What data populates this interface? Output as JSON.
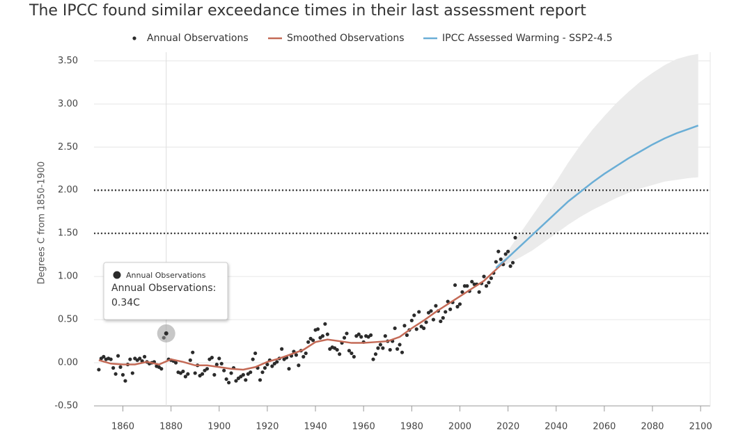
{
  "chart_data": {
    "type": "line",
    "title": "The IPCC found similar exceedance times in their last assessment report",
    "ylabel": "Degrees C from 1850-1900",
    "xlim": [
      1848,
      2104
    ],
    "ylim": [
      -0.5,
      3.6
    ],
    "xticks": [
      1860,
      1880,
      1900,
      1920,
      1940,
      1960,
      1980,
      2000,
      2020,
      2040,
      2060,
      2080,
      2100
    ],
    "yticks": [
      {
        "value": -0.5,
        "label": "-0.50"
      },
      {
        "value": 0,
        "label": "0.00"
      },
      {
        "value": 0.5,
        "label": "0.50"
      },
      {
        "value": 1,
        "label": "1.00"
      },
      {
        "value": 1.5,
        "label": "1.50"
      },
      {
        "value": 2,
        "label": "2.00"
      },
      {
        "value": 2.5,
        "label": "2.50"
      },
      {
        "value": 3,
        "label": "3.00"
      },
      {
        "value": 3.5,
        "label": "3.50"
      }
    ],
    "grid": true,
    "reference_lines": [
      1.5,
      2.0
    ],
    "series": [
      {
        "name": "Annual Observations",
        "type": "scatter",
        "color": "#2b2b2b",
        "x": [
          1850,
          1851,
          1852,
          1853,
          1854,
          1855,
          1856,
          1857,
          1858,
          1859,
          1860,
          1861,
          1862,
          1863,
          1864,
          1865,
          1866,
          1867,
          1868,
          1869,
          1870,
          1871,
          1872,
          1873,
          1874,
          1875,
          1876,
          1877,
          1878,
          1879,
          1880,
          1881,
          1882,
          1883,
          1884,
          1885,
          1886,
          1887,
          1888,
          1889,
          1890,
          1891,
          1892,
          1893,
          1894,
          1895,
          1896,
          1897,
          1898,
          1899,
          1900,
          1901,
          1902,
          1903,
          1904,
          1905,
          1906,
          1907,
          1908,
          1909,
          1910,
          1911,
          1912,
          1913,
          1914,
          1915,
          1916,
          1917,
          1918,
          1919,
          1920,
          1921,
          1922,
          1923,
          1924,
          1925,
          1926,
          1927,
          1928,
          1929,
          1930,
          1931,
          1932,
          1933,
          1934,
          1935,
          1936,
          1937,
          1938,
          1939,
          1940,
          1941,
          1942,
          1943,
          1944,
          1945,
          1946,
          1947,
          1948,
          1949,
          1950,
          1951,
          1952,
          1953,
          1954,
          1955,
          1956,
          1957,
          1958,
          1959,
          1960,
          1961,
          1962,
          1963,
          1964,
          1965,
          1966,
          1967,
          1968,
          1969,
          1970,
          1971,
          1972,
          1973,
          1974,
          1975,
          1976,
          1977,
          1978,
          1979,
          1980,
          1981,
          1982,
          1983,
          1984,
          1985,
          1986,
          1987,
          1988,
          1989,
          1990,
          1991,
          1992,
          1993,
          1994,
          1995,
          1996,
          1997,
          1998,
          1999,
          2000,
          2001,
          2002,
          2003,
          2004,
          2005,
          2006,
          2007,
          2008,
          2009,
          2010,
          2011,
          2012,
          2013,
          2014,
          2015,
          2016,
          2017,
          2018,
          2019,
          2020,
          2021,
          2022,
          2023
        ],
        "values": [
          -0.08,
          0.05,
          0.07,
          0.04,
          0.05,
          0.04,
          -0.06,
          -0.13,
          0.08,
          -0.05,
          -0.14,
          -0.21,
          -0.02,
          0.04,
          -0.12,
          0.05,
          0.03,
          0.05,
          0.02,
          0.07,
          0.01,
          -0.01,
          0.0,
          0.01,
          -0.04,
          -0.05,
          -0.07,
          0.29,
          0.34,
          0.04,
          0.03,
          0.02,
          0.0,
          -0.11,
          -0.12,
          -0.1,
          -0.16,
          -0.13,
          0.03,
          0.12,
          -0.12,
          -0.03,
          -0.15,
          -0.13,
          -0.09,
          -0.07,
          0.04,
          0.06,
          -0.14,
          -0.02,
          0.05,
          -0.01,
          -0.09,
          -0.19,
          -0.23,
          -0.12,
          -0.06,
          -0.21,
          -0.18,
          -0.16,
          -0.14,
          -0.2,
          -0.13,
          -0.11,
          0.04,
          0.11,
          -0.06,
          -0.2,
          -0.11,
          -0.06,
          -0.02,
          0.03,
          -0.04,
          -0.01,
          0.01,
          0.05,
          0.16,
          0.04,
          0.06,
          -0.07,
          0.08,
          0.13,
          0.09,
          -0.03,
          0.14,
          0.07,
          0.11,
          0.24,
          0.28,
          0.26,
          0.38,
          0.39,
          0.29,
          0.31,
          0.45,
          0.33,
          0.16,
          0.18,
          0.17,
          0.15,
          0.1,
          0.23,
          0.29,
          0.34,
          0.14,
          0.11,
          0.07,
          0.31,
          0.33,
          0.3,
          0.24,
          0.31,
          0.3,
          0.32,
          0.04,
          0.1,
          0.17,
          0.21,
          0.17,
          0.31,
          0.25,
          0.15,
          0.25,
          0.4,
          0.16,
          0.21,
          0.12,
          0.43,
          0.32,
          0.38,
          0.49,
          0.55,
          0.39,
          0.59,
          0.42,
          0.4,
          0.47,
          0.58,
          0.6,
          0.5,
          0.66,
          0.6,
          0.48,
          0.52,
          0.59,
          0.71,
          0.62,
          0.7,
          0.9,
          0.65,
          0.68,
          0.82,
          0.89,
          0.89,
          0.83,
          0.94,
          0.91,
          0.91,
          0.82,
          0.92,
          1.0,
          0.89,
          0.93,
          0.98,
          1.04,
          1.17,
          1.29,
          1.2,
          1.14,
          1.26,
          1.29,
          1.12,
          1.16,
          1.45
        ]
      },
      {
        "name": "Smoothed Observations",
        "type": "line",
        "color": "#c46a56",
        "x": [
          1850,
          1855,
          1860,
          1865,
          1870,
          1875,
          1880,
          1885,
          1890,
          1895,
          1900,
          1905,
          1910,
          1915,
          1920,
          1925,
          1930,
          1935,
          1940,
          1945,
          1950,
          1955,
          1960,
          1965,
          1970,
          1975,
          1980,
          1985,
          1990,
          1995,
          2000,
          2005,
          2010,
          2015,
          2020
        ],
        "values": [
          0.03,
          -0.01,
          -0.02,
          -0.02,
          0.01,
          -0.02,
          0.04,
          0.01,
          -0.03,
          -0.03,
          -0.05,
          -0.07,
          -0.08,
          -0.05,
          0.01,
          0.05,
          0.1,
          0.15,
          0.24,
          0.27,
          0.25,
          0.23,
          0.23,
          0.24,
          0.25,
          0.3,
          0.4,
          0.49,
          0.59,
          0.68,
          0.77,
          0.86,
          0.95,
          1.08,
          1.22
        ]
      },
      {
        "name": "IPCC Assessed Warming - SSP2-4.5",
        "type": "line",
        "color": "#6aaed6",
        "band_color": "#ebebeb",
        "x": [
          2015,
          2020,
          2025,
          2030,
          2035,
          2040,
          2045,
          2050,
          2055,
          2060,
          2065,
          2070,
          2075,
          2080,
          2085,
          2090,
          2095,
          2099
        ],
        "values": [
          1.1,
          1.22,
          1.35,
          1.48,
          1.61,
          1.74,
          1.87,
          1.98,
          2.09,
          2.19,
          2.28,
          2.37,
          2.45,
          2.53,
          2.6,
          2.66,
          2.71,
          2.75
        ],
        "lower": [
          1.08,
          1.15,
          1.22,
          1.3,
          1.4,
          1.5,
          1.6,
          1.69,
          1.77,
          1.84,
          1.91,
          1.97,
          2.02,
          2.06,
          2.1,
          2.12,
          2.14,
          2.15
        ],
        "upper": [
          1.12,
          1.3,
          1.5,
          1.7,
          1.9,
          2.1,
          2.32,
          2.52,
          2.7,
          2.86,
          3.01,
          3.14,
          3.26,
          3.36,
          3.45,
          3.52,
          3.56,
          3.58
        ]
      }
    ],
    "tooltip": {
      "series_name": "Annual Observations",
      "label": "Annual Observations:",
      "value_label": "0.34C",
      "x": 1878,
      "value": 0.34
    }
  }
}
